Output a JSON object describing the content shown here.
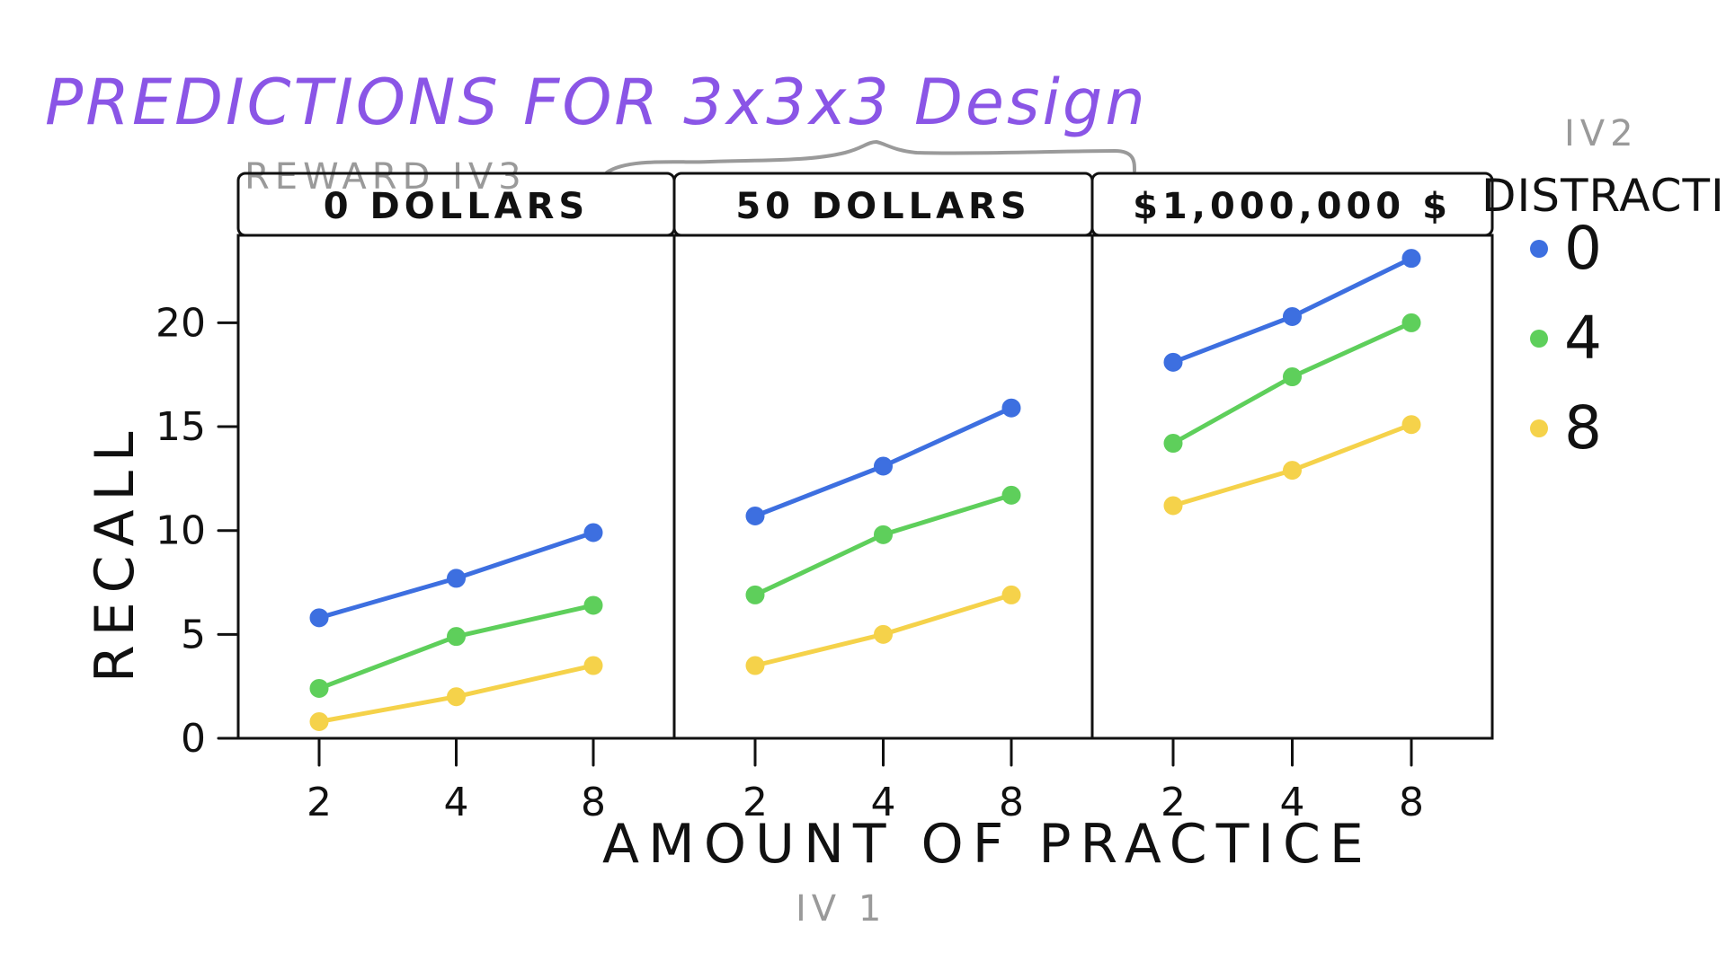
{
  "title": "PREDICTIONS FOR 3x3x3 Design",
  "iv_labels": {
    "reward": "REWARD IV3",
    "distraction": "IV2",
    "practice": "IV 1"
  },
  "chart_data": {
    "type": "line",
    "facet_by": "Reward",
    "panels": [
      "0 DOLLARS",
      "50 DOLLARS",
      "$1,000,000 $"
    ],
    "x": [
      2,
      4,
      8
    ],
    "x_tick_labels": [
      "2",
      "4",
      "8"
    ],
    "xlabel": "AMOUNT OF PRACTICE",
    "ylabel": "RECALL",
    "ylim": [
      0,
      23
    ],
    "y_ticks": [
      0,
      5,
      10,
      15,
      20
    ],
    "legend": {
      "title": "DISTRACTION",
      "placement": "right"
    },
    "series": [
      {
        "name": "0",
        "color": "#3d6fe0",
        "values": [
          [
            5.8,
            7.7,
            9.9
          ],
          [
            10.7,
            13.1,
            15.9
          ],
          [
            18.1,
            20.3,
            23.1
          ]
        ]
      },
      {
        "name": "4",
        "color": "#5ecf5b",
        "values": [
          [
            2.4,
            4.9,
            6.4
          ],
          [
            6.9,
            9.8,
            11.7
          ],
          [
            14.2,
            17.4,
            20.0
          ]
        ]
      },
      {
        "name": "8",
        "color": "#f5d24a",
        "values": [
          [
            0.8,
            2.0,
            3.5
          ],
          [
            3.5,
            5.0,
            6.9
          ],
          [
            11.2,
            12.9,
            15.1
          ]
        ]
      }
    ],
    "grid": false
  }
}
